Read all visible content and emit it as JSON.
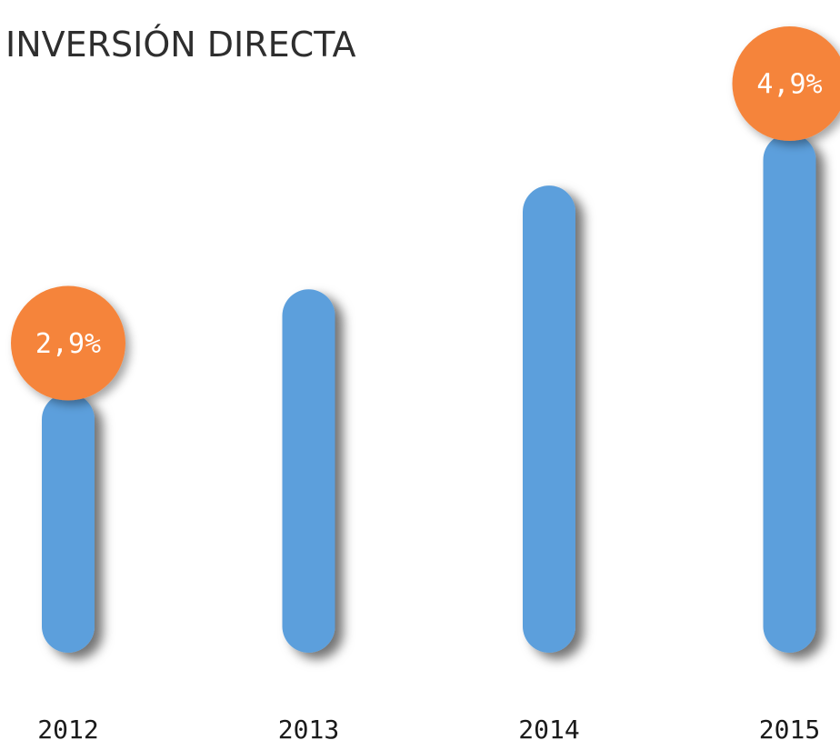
{
  "chart_data": {
    "type": "bar",
    "title": "INVERSIÓN DIRECTA",
    "categories": [
      "2012",
      "2013",
      "2014",
      "2015"
    ],
    "values": [
      2.9,
      3.7,
      4.5,
      4.9
    ],
    "value_labels": [
      "2,9%",
      null,
      null,
      "4,9%"
    ],
    "color": "#5b9fdc",
    "label_color": "#f5843a",
    "ylim": [
      0.9,
      4.9
    ]
  }
}
